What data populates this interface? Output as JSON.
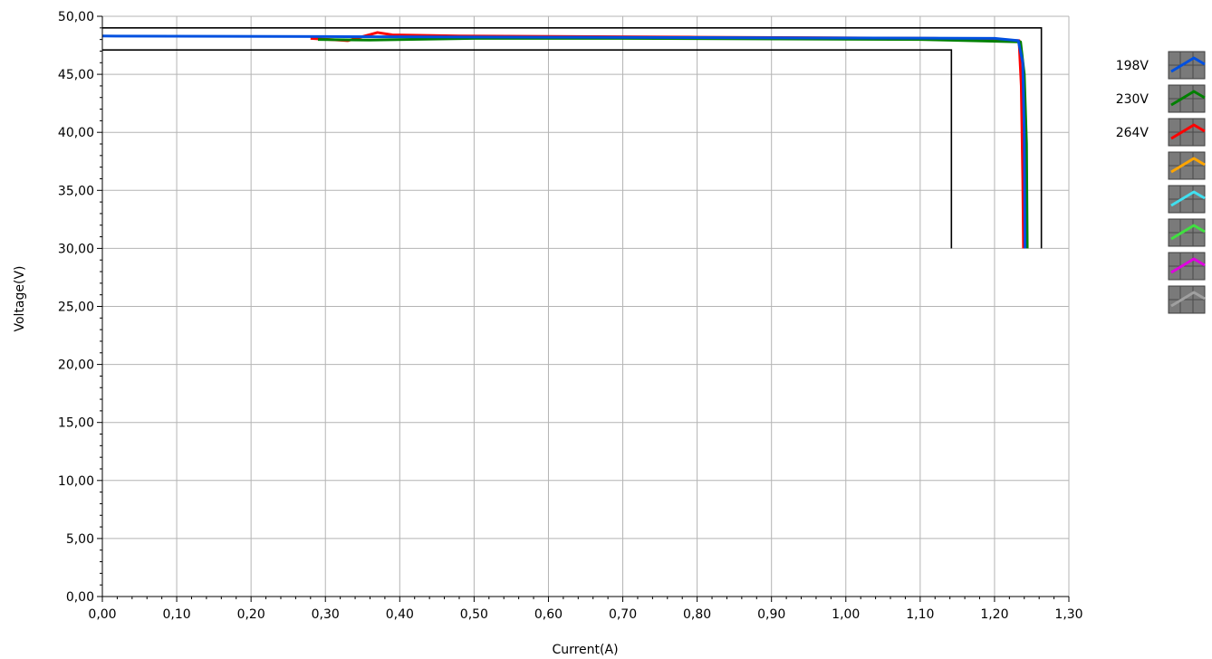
{
  "chart_data": {
    "type": "line",
    "xlabel": "Current(A)",
    "ylabel": "Voltage(V)",
    "xlim": [
      0,
      1.3
    ],
    "ylim": [
      0,
      50
    ],
    "x_ticks": [
      "0,00",
      "0,10",
      "0,20",
      "0,30",
      "0,40",
      "0,50",
      "0,60",
      "0,70",
      "0,80",
      "0,90",
      "1,00",
      "1,10",
      "1,20",
      "1,30"
    ],
    "y_ticks": [
      "0,00",
      "5,00",
      "10,00",
      "15,00",
      "20,00",
      "25,00",
      "30,00",
      "35,00",
      "40,00",
      "45,00",
      "50,00"
    ],
    "grid": true,
    "legend_position": "right",
    "limit_lines": [
      {
        "x": [
          0,
          1.263,
          1.263
        ],
        "y": [
          49.0,
          49.0,
          30.0
        ],
        "color": "#000000"
      },
      {
        "x": [
          0,
          1.142,
          1.142
        ],
        "y": [
          47.1,
          47.1,
          30.0
        ],
        "color": "#000000"
      }
    ],
    "series": [
      {
        "name": "198V",
        "color": "#0050e0",
        "x": [
          0,
          0.3,
          0.6,
          0.9,
          1.2,
          1.232,
          1.238,
          1.24,
          1.241
        ],
        "y": [
          48.3,
          48.25,
          48.2,
          48.15,
          48.1,
          47.9,
          46.0,
          40.0,
          30.0
        ]
      },
      {
        "name": "230V",
        "color": "#008000",
        "x": [
          0.29,
          0.36,
          0.5,
          0.7,
          1.1,
          1.235,
          1.24,
          1.243,
          1.244
        ],
        "y": [
          48.0,
          47.95,
          48.1,
          48.1,
          48.0,
          47.8,
          45.0,
          39.0,
          30.0
        ]
      },
      {
        "name": "264V",
        "color": "#ff0000",
        "x": [
          0.28,
          0.33,
          0.37,
          0.39,
          0.48,
          0.8,
          1.12,
          1.233,
          1.236,
          1.238,
          1.239
        ],
        "y": [
          48.1,
          47.9,
          48.6,
          48.4,
          48.3,
          48.2,
          48.1,
          47.9,
          44.0,
          36.0,
          30.0
        ]
      }
    ],
    "legend_swatches": [
      {
        "label": "198V",
        "color": "#0050e0"
      },
      {
        "label": "230V",
        "color": "#008000"
      },
      {
        "label": "264V",
        "color": "#ff0000"
      },
      {
        "label": "",
        "color": "#ffa500"
      },
      {
        "label": "",
        "color": "#40e0f0"
      },
      {
        "label": "",
        "color": "#40e040"
      },
      {
        "label": "",
        "color": "#e000e0"
      },
      {
        "label": "",
        "color": "#a0a0a0"
      }
    ]
  }
}
